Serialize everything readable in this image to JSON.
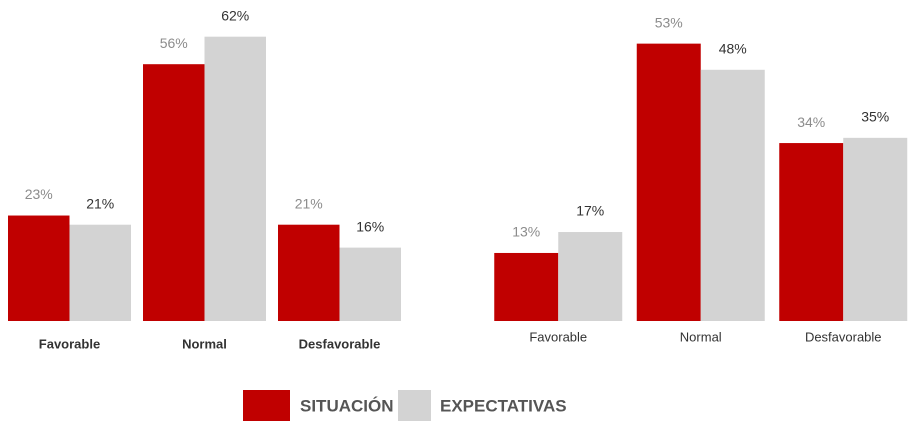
{
  "chart_data": [
    {
      "type": "bar",
      "categories": [
        "Favorable",
        "Normal",
        "Desfavorable"
      ],
      "series": [
        {
          "name": "SITUACIÓN",
          "color": "#c00000",
          "values": [
            23,
            56,
            21
          ],
          "value_labels": [
            "23%",
            "56%",
            "21%"
          ]
        },
        {
          "name": "EXPECTATIVAS",
          "color": "#d3d3d3",
          "values": [
            21,
            62,
            16
          ],
          "value_labels": [
            "21%",
            "62%",
            "16%"
          ]
        }
      ],
      "ylim": [
        0,
        70
      ]
    },
    {
      "type": "bar",
      "categories": [
        "Favorable",
        "Normal",
        "Desfavorable"
      ],
      "series": [
        {
          "name": "SITUACIÓN",
          "color": "#c00000",
          "values": [
            13,
            53,
            34
          ],
          "value_labels": [
            "13%",
            "53%",
            "34%"
          ]
        },
        {
          "name": "EXPECTATIVAS",
          "color": "#d3d3d3",
          "values": [
            17,
            48,
            35
          ],
          "value_labels": [
            "17%",
            "48%",
            "35%"
          ]
        }
      ],
      "ylim": [
        0,
        60
      ]
    }
  ]
}
